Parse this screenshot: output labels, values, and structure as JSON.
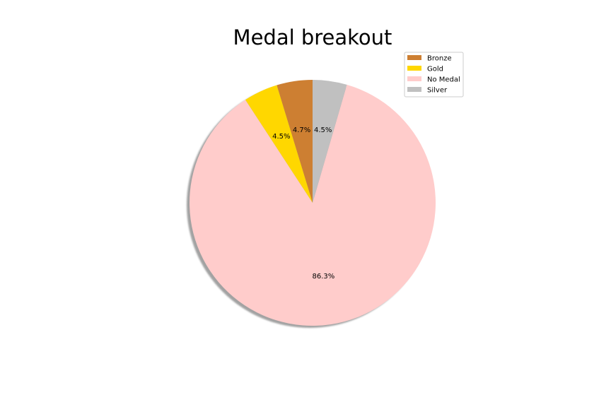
{
  "chart_data": {
    "type": "pie",
    "title": "Medal breakout",
    "categories": [
      "Bronze",
      "Gold",
      "No Medal",
      "Silver"
    ],
    "values": [
      4.7,
      4.5,
      86.3,
      4.5
    ],
    "value_labels": [
      "4.7%",
      "4.5%",
      "86.3%",
      "4.5%"
    ],
    "colors": [
      "#cd7f32",
      "#ffd700",
      "#ffcccb",
      "#c0c0c0"
    ],
    "start_angle_deg": 90,
    "direction": "counterclockwise",
    "shadow": true,
    "legend": {
      "entries": [
        "Bronze",
        "Gold",
        "No Medal",
        "Silver"
      ],
      "position": "top-right"
    }
  }
}
